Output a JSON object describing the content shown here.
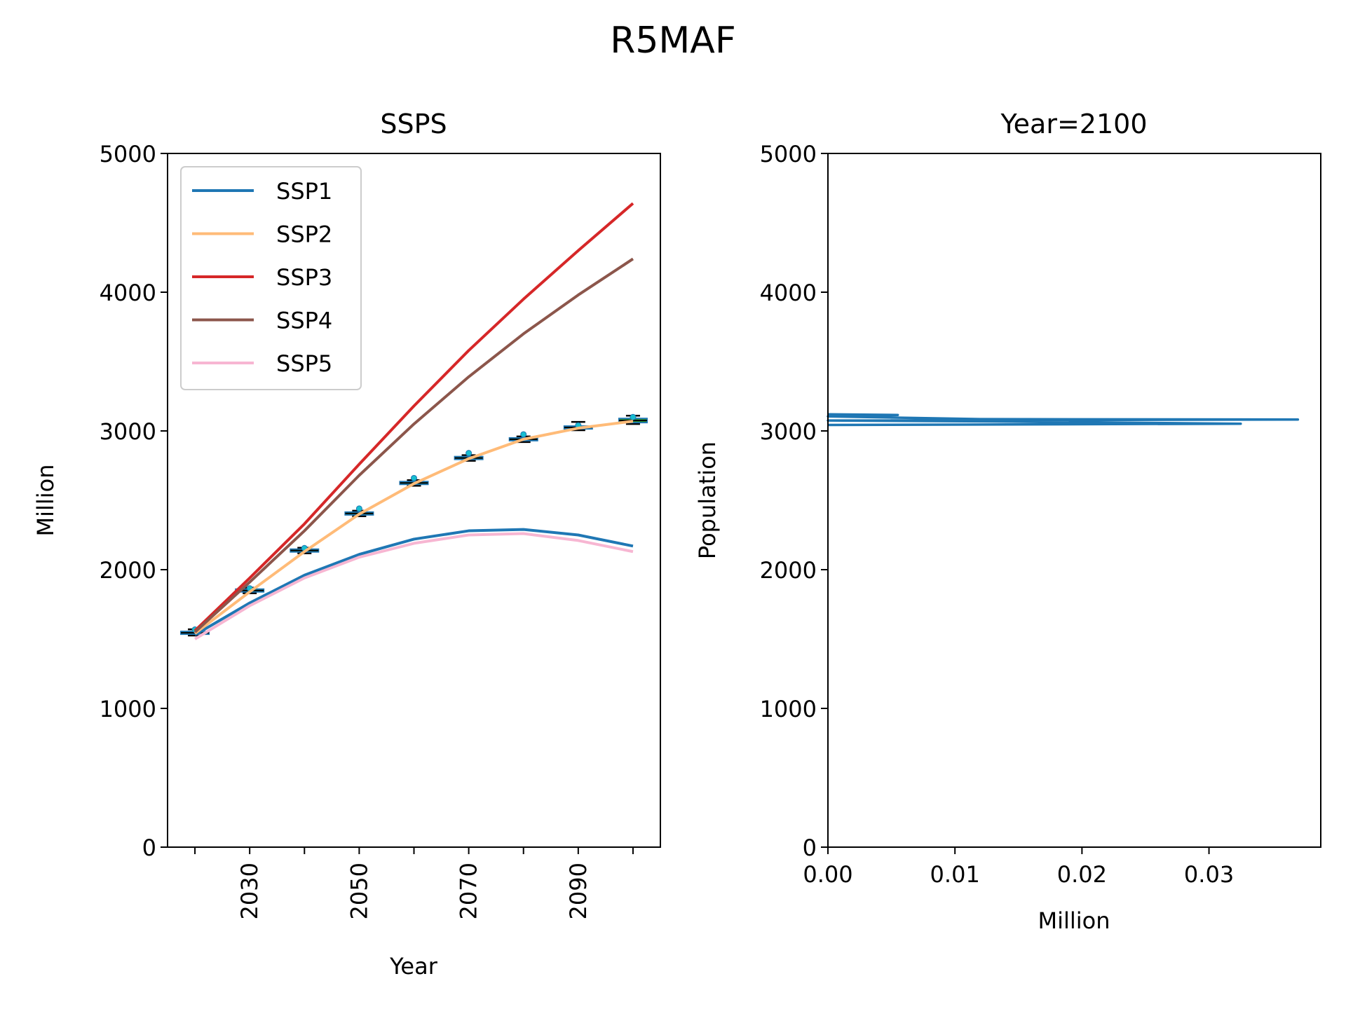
{
  "figure_title": "R5MAF",
  "colors": {
    "SSP1": "#1f77b4",
    "SSP2": "#ffbb78",
    "SSP3": "#d62728",
    "SSP4": "#8c564b",
    "SSP5": "#f7b6d2",
    "box_fill": "#2ca02c",
    "box_edge": "#1f77b4",
    "whisker": "#000000",
    "flier": "#17becf"
  },
  "chart_data": [
    {
      "type": "line",
      "title": "SSPS",
      "xlabel": "Year",
      "ylabel": "Million",
      "ylim": [
        0,
        5000
      ],
      "xlim": [
        2015,
        2105
      ],
      "xticks": [
        2020,
        2030,
        2040,
        2050,
        2060,
        2070,
        2080,
        2090,
        2100
      ],
      "xtick_labels": [
        "",
        "2030",
        "",
        "2050",
        "",
        "2070",
        "",
        "2090",
        ""
      ],
      "yticks": [
        0,
        1000,
        2000,
        3000,
        4000,
        5000
      ],
      "ytick_labels": [
        "0",
        "1000",
        "2000",
        "3000",
        "4000",
        "5000"
      ],
      "legend_position": "upper-left",
      "x": [
        2020,
        2030,
        2040,
        2050,
        2060,
        2070,
        2080,
        2090,
        2100
      ],
      "series": [
        {
          "name": "SSP1",
          "values": [
            1530,
            1760,
            1960,
            2110,
            2220,
            2280,
            2290,
            2250,
            2170
          ]
        },
        {
          "name": "SSP2",
          "values": [
            1540,
            1840,
            2130,
            2400,
            2620,
            2800,
            2940,
            3020,
            3070
          ]
        },
        {
          "name": "SSP3",
          "values": [
            1560,
            1940,
            2330,
            2760,
            3180,
            3580,
            3950,
            4300,
            4640
          ]
        },
        {
          "name": "SSP4",
          "values": [
            1550,
            1910,
            2280,
            2680,
            3050,
            3390,
            3700,
            3980,
            4240
          ]
        },
        {
          "name": "SSP5",
          "values": [
            1500,
            1740,
            1940,
            2090,
            2190,
            2250,
            2260,
            2210,
            2130
          ]
        }
      ],
      "boxes": [
        {
          "x": 2020,
          "q1": 1535,
          "median": 1545,
          "q3": 1555,
          "min": 1525,
          "max": 1570,
          "flier": 1568
        },
        {
          "x": 2030,
          "q1": 1840,
          "median": 1850,
          "q3": 1860,
          "min": 1830,
          "max": 1870,
          "flier": 1865
        },
        {
          "x": 2040,
          "q1": 2128,
          "median": 2138,
          "q3": 2148,
          "min": 2118,
          "max": 2158,
          "flier": 2155
        },
        {
          "x": 2050,
          "q1": 2395,
          "median": 2405,
          "q3": 2415,
          "min": 2385,
          "max": 2425,
          "flier": 2440
        },
        {
          "x": 2060,
          "q1": 2615,
          "median": 2625,
          "q3": 2635,
          "min": 2605,
          "max": 2645,
          "flier": 2660
        },
        {
          "x": 2070,
          "q1": 2795,
          "median": 2805,
          "q3": 2815,
          "min": 2785,
          "max": 2825,
          "flier": 2840
        },
        {
          "x": 2080,
          "q1": 2930,
          "median": 2940,
          "q3": 2950,
          "min": 2920,
          "max": 2960,
          "flier": 2975
        },
        {
          "x": 2090,
          "q1": 3015,
          "median": 3025,
          "q3": 3035,
          "min": 3005,
          "max": 3065,
          "flier": 3040
        },
        {
          "x": 2100,
          "q1": 3060,
          "median": 3075,
          "q3": 3090,
          "min": 3050,
          "max": 3110,
          "flier": 3100
        }
      ]
    },
    {
      "type": "line",
      "title": "Year=2100",
      "xlabel": "Million",
      "ylabel": "Population",
      "xlim": [
        0,
        0.0388
      ],
      "ylim": [
        0,
        5000
      ],
      "xticks": [
        0.0,
        0.01,
        0.02,
        0.03
      ],
      "xtick_labels": [
        "0.00",
        "0.01",
        "0.02",
        "0.03"
      ],
      "yticks": [
        0,
        1000,
        2000,
        3000,
        4000,
        5000
      ],
      "ytick_labels": [
        "0",
        "1000",
        "2000",
        "3000",
        "4000",
        "5000"
      ],
      "series": [
        {
          "name": "",
          "points": [
            [
              0.0,
              3120
            ],
            [
              0.0055,
              3115
            ],
            [
              0.0,
              3105
            ],
            [
              0.012,
              3085
            ],
            [
              0.037,
              3082
            ],
            [
              0.0,
              3075
            ],
            [
              0.013,
              3068
            ],
            [
              0.0325,
              3052
            ],
            [
              0.0,
              3043
            ]
          ]
        }
      ]
    }
  ]
}
